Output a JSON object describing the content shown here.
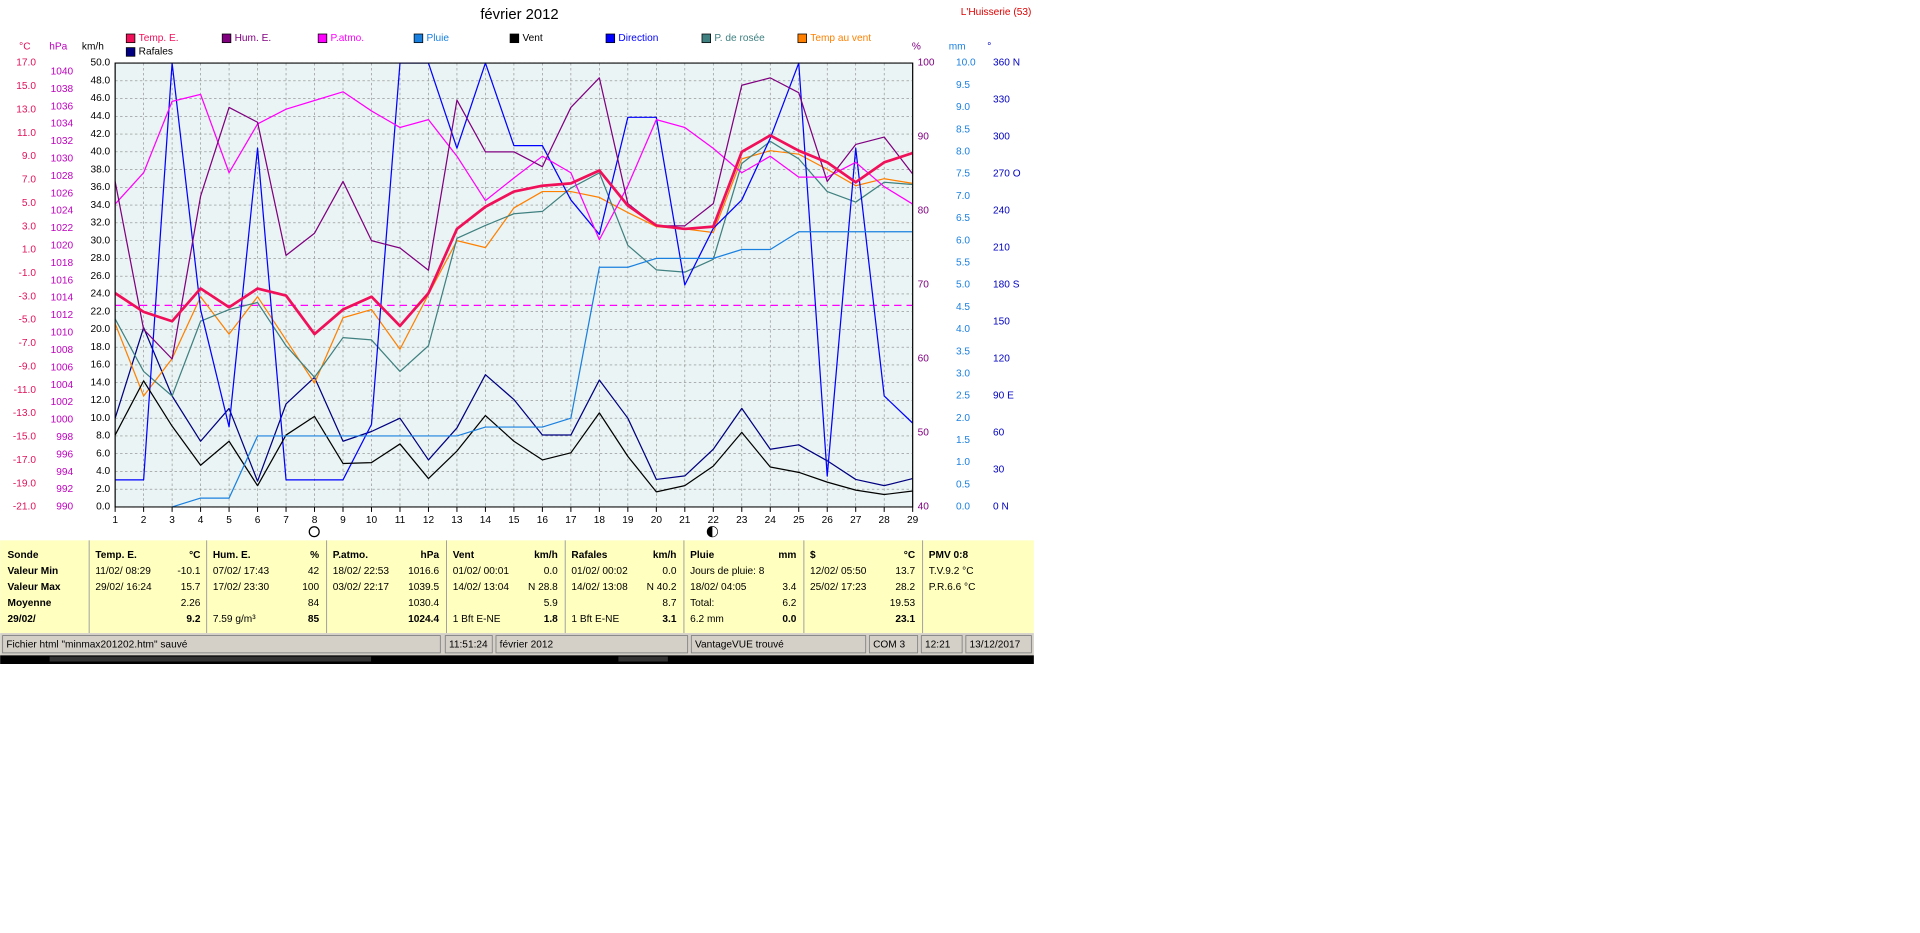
{
  "chart_data": {
    "type": "line",
    "title": "février 2012",
    "station": "L'Huisserie (53)",
    "x": [
      1,
      2,
      3,
      4,
      5,
      6,
      7,
      8,
      9,
      10,
      11,
      12,
      13,
      14,
      15,
      16,
      17,
      18,
      19,
      20,
      21,
      22,
      23,
      24,
      25,
      26,
      27,
      28,
      29
    ],
    "xlim": [
      1,
      29
    ],
    "grid": true,
    "axes": [
      {
        "label": "°C",
        "color": "#e0105a",
        "lim": [
          -21,
          17
        ],
        "ticks": [
          {
            "value": -21,
            "label": "-21.0"
          },
          {
            "value": -19,
            "label": "-19.0"
          },
          {
            "value": -17,
            "label": "-17.0"
          },
          {
            "value": -15,
            "label": "-15.0"
          },
          {
            "value": -13,
            "label": "-13.0"
          },
          {
            "value": -11,
            "label": "-11.0"
          },
          {
            "value": -9,
            "label": "-9.0"
          },
          {
            "value": -7,
            "label": "-7.0"
          },
          {
            "value": -5,
            "label": "-5.0"
          },
          {
            "value": -3,
            "label": "-3.0"
          },
          {
            "value": -1,
            "label": "-1.0"
          },
          {
            "value": 1,
            "label": "1.0"
          },
          {
            "value": 3,
            "label": "3.0"
          },
          {
            "value": 5,
            "label": "5.0"
          },
          {
            "value": 7,
            "label": "7.0"
          },
          {
            "value": 9,
            "label": "9.0"
          },
          {
            "value": 11,
            "label": "11.0"
          },
          {
            "value": 13,
            "label": "13.0"
          },
          {
            "value": 15,
            "label": "15.0"
          },
          {
            "value": 17,
            "label": "17.0"
          }
        ]
      },
      {
        "label": "hPa",
        "color": "#c000c0",
        "lim": [
          990,
          1041
        ],
        "ticks": [
          990,
          992,
          994,
          996,
          998,
          1000,
          1002,
          1004,
          1006,
          1008,
          1010,
          1012,
          1014,
          1016,
          1018,
          1020,
          1022,
          1024,
          1026,
          1028,
          1030,
          1032,
          1034,
          1036,
          1038,
          1040
        ]
      },
      {
        "label": "km/h",
        "color": "#000000",
        "lim": [
          0,
          50
        ],
        "ticks": [
          {
            "value": 0,
            "label": "0.0"
          },
          {
            "value": 2,
            "label": "2.0"
          },
          {
            "value": 4,
            "label": "4.0"
          },
          {
            "value": 6,
            "label": "6.0"
          },
          {
            "value": 8,
            "label": "8.0"
          },
          {
            "value": 10,
            "label": "10.0"
          },
          {
            "value": 12,
            "label": "12.0"
          },
          {
            "value": 14,
            "label": "14.0"
          },
          {
            "value": 16,
            "label": "16.0"
          },
          {
            "value": 18,
            "label": "18.0"
          },
          {
            "value": 20,
            "label": "20.0"
          },
          {
            "value": 22,
            "label": "22.0"
          },
          {
            "value": 24,
            "label": "24.0"
          },
          {
            "value": 26,
            "label": "26.0"
          },
          {
            "value": 28,
            "label": "28.0"
          },
          {
            "value": 30,
            "label": "30.0"
          },
          {
            "value": 32,
            "label": "32.0"
          },
          {
            "value": 34,
            "label": "34.0"
          },
          {
            "value": 36,
            "label": "36.0"
          },
          {
            "value": 38,
            "label": "38.0"
          },
          {
            "value": 40,
            "label": "40.0"
          },
          {
            "value": 42,
            "label": "42.0"
          },
          {
            "value": 44,
            "label": "44.0"
          },
          {
            "value": 46,
            "label": "46.0"
          },
          {
            "value": 48,
            "label": "48.0"
          },
          {
            "value": 50,
            "label": "50.0"
          }
        ]
      },
      {
        "label": "%",
        "color": "#800080",
        "lim": [
          40,
          100
        ],
        "ticks": [
          40,
          50,
          60,
          70,
          80,
          90,
          100
        ]
      },
      {
        "label": "mm",
        "color": "#1a80e0",
        "lim": [
          0,
          10
        ],
        "ticks": [
          {
            "value": 0,
            "label": "0.0"
          },
          0.5,
          {
            "value": 1,
            "label": "1.0"
          },
          1.5,
          {
            "value": 2,
            "label": "2.0"
          },
          2.5,
          {
            "value": 3,
            "label": "3.0"
          },
          3.5,
          {
            "value": 4,
            "label": "4.0"
          },
          4.5,
          {
            "value": 5,
            "label": "5.0"
          },
          5.5,
          {
            "value": 6,
            "label": "6.0"
          },
          6.5,
          {
            "value": 7,
            "label": "7.0"
          },
          7.5,
          {
            "value": 8,
            "label": "8.0"
          },
          8.5,
          {
            "value": 9,
            "label": "9.0"
          },
          9.5,
          {
            "value": 10,
            "label": "10.0"
          }
        ]
      },
      {
        "label": "°",
        "color": "#0000c0",
        "lim": [
          0,
          360
        ],
        "ticks": [
          {
            "value": 0,
            "label": "0   N"
          },
          30,
          60,
          {
            "value": 90,
            "label": "90  E"
          },
          120,
          150,
          {
            "value": 180,
            "label": "180 S"
          },
          210,
          240,
          {
            "value": 270,
            "label": "270 O"
          },
          300,
          330,
          {
            "value": 360,
            "label": "360 N"
          }
        ]
      }
    ],
    "series": [
      {
        "name": "Temp. E.",
        "color": "#f0105a",
        "axis": 0,
        "values": [
          -2.7,
          -4.3,
          -5.1,
          -2.3,
          -3.9,
          -2.3,
          -2.9,
          -6.2,
          -4.1,
          -3.0,
          -5.5,
          -2.7,
          2.8,
          4.7,
          6.0,
          6.5,
          6.7,
          7.8,
          4.8,
          3.1,
          2.8,
          3.0,
          9.4,
          10.8,
          9.5,
          8.5,
          6.8,
          8.5,
          9.3
        ]
      },
      {
        "name": "Hum. E.",
        "color": "#800080",
        "axis": 3,
        "values": [
          84,
          64,
          60,
          82,
          94,
          92,
          74,
          77,
          84,
          76,
          75,
          72,
          95,
          88,
          88,
          86,
          94,
          98,
          81,
          78,
          78,
          81,
          97,
          98,
          96,
          84,
          89,
          90,
          85
        ]
      },
      {
        "name": "P.atmo.",
        "color": "#ff00ff",
        "axis": 1,
        "values": [
          1024.8,
          1028.4,
          1036.6,
          1037.4,
          1028.4,
          1034.0,
          1035.7,
          1036.7,
          1037.7,
          1035.5,
          1033.6,
          1034.5,
          1030.3,
          1025.2,
          1027.8,
          1030.3,
          1028.4,
          1020.7,
          1026.9,
          1034.5,
          1033.6,
          1031.2,
          1028.4,
          1030.3,
          1027.9,
          1027.9,
          1029.6,
          1026.8,
          1024.8
        ]
      },
      {
        "name": "Pluie",
        "color": "#1a80e0",
        "axis": 4,
        "values": [
          null,
          null,
          0.0,
          0.2,
          0.2,
          1.6,
          1.6,
          1.6,
          1.6,
          1.6,
          1.6,
          1.6,
          1.6,
          1.8,
          1.8,
          1.8,
          2.0,
          5.4,
          5.4,
          5.6,
          5.6,
          5.6,
          5.8,
          5.8,
          6.2,
          6.2,
          6.2,
          6.2,
          6.2
        ]
      },
      {
        "name": "Vent",
        "color": "#000000",
        "axis": 2,
        "values": [
          8.1,
          14.2,
          9.1,
          4.7,
          7.4,
          2.4,
          8.1,
          10.2,
          4.9,
          5.0,
          7.1,
          3.2,
          6.3,
          10.3,
          7.4,
          5.3,
          6.1,
          10.6,
          5.7,
          1.7,
          2.4,
          4.6,
          8.4,
          4.5,
          3.9,
          2.8,
          1.9,
          1.4,
          1.8
        ]
      },
      {
        "name": "Direction",
        "color": "#0000ff",
        "axis": 5,
        "values": [
          22,
          22,
          360,
          160,
          65,
          291,
          22,
          22,
          22,
          67,
          360,
          360,
          291,
          360,
          293,
          293,
          249,
          221,
          316,
          316,
          180,
          226,
          249,
          299,
          360,
          25,
          291,
          90,
          68
        ]
      },
      {
        "name": "P. de rosée",
        "color": "#408080",
        "axis": 0,
        "values": [
          -4.9,
          -9.4,
          -11.5,
          -5.1,
          -4.1,
          -3.5,
          -7.2,
          -9.9,
          -6.5,
          -6.7,
          -9.4,
          -7.2,
          2.0,
          3.1,
          4.1,
          4.3,
          6.3,
          7.6,
          1.4,
          -0.7,
          -0.9,
          0.2,
          8.4,
          10.3,
          8.8,
          6.0,
          5.1,
          6.8,
          6.6
        ]
      },
      {
        "name": "Temp au vent",
        "color": "#ff8000",
        "axis": 0,
        "values": [
          -5.3,
          -11.5,
          -8.3,
          -3.0,
          -6.2,
          -3.0,
          -6.7,
          -10.4,
          -4.8,
          -4.1,
          -7.5,
          -2.8,
          1.8,
          1.2,
          4.6,
          6.0,
          6.0,
          5.5,
          4.2,
          3.0,
          2.8,
          2.5,
          8.8,
          9.5,
          9.2,
          7.9,
          6.5,
          7.1,
          6.7
        ]
      },
      {
        "name": "Rafales",
        "color": "#000080",
        "axis": 2,
        "values": [
          10.0,
          20.2,
          12.5,
          7.4,
          11.1,
          2.9,
          11.6,
          14.6,
          7.4,
          8.5,
          10.0,
          5.3,
          8.9,
          14.9,
          12.1,
          8.1,
          8.1,
          14.3,
          10.0,
          3.1,
          3.5,
          6.5,
          11.1,
          6.5,
          7.0,
          5.2,
          3.1,
          2.4,
          3.2
        ]
      }
    ]
  },
  "panel": {
    "row_labels": [
      "Sonde",
      "Valeur Min",
      "Valeur Max",
      "Moyenne",
      "29/02/"
    ],
    "columns": [
      {
        "header": {
          "left": "Temp. E.",
          "right": "°C"
        },
        "rows": [
          {
            "left": "11/02/  08:29",
            "right": "-10.1"
          },
          {
            "left": "29/02/  16:24",
            "right": "15.7"
          },
          {
            "right": "2.26"
          },
          {
            "right": "9.2"
          }
        ]
      },
      {
        "header": {
          "left": "Hum. E.",
          "right": "%"
        },
        "rows": [
          {
            "left": "07/02/  17:43",
            "right": "42"
          },
          {
            "left": "17/02/  23:30",
            "right": "100"
          },
          {
            "right": "84"
          },
          {
            "left": " 7.59 g/m³",
            "right": "85"
          }
        ]
      },
      {
        "header": {
          "left": "P.atmo.",
          "right": "hPa"
        },
        "rows": [
          {
            "left": "18/02/  22:53",
            "right": "1016.6"
          },
          {
            "left": "03/02/  22:17",
            "right": "1039.5"
          },
          {
            "right": "1030.4"
          },
          {
            "right": "1024.4"
          }
        ]
      },
      {
        "header": {
          "left": "Vent",
          "right": "km/h"
        },
        "rows": [
          {
            "left": "01/02/  00:01",
            "right": "0.0"
          },
          {
            "left": "14/02/  13:04",
            "right": "N 28.8"
          },
          {
            "right": "5.9"
          },
          {
            "left": " 1 Bft E-NE",
            "right": "1.8"
          }
        ]
      },
      {
        "header": {
          "left": "Rafales",
          "right": "km/h"
        },
        "rows": [
          {
            "left": "01/02/  00:02",
            "right": "0.0"
          },
          {
            "left": "14/02/  13:08",
            "right": "N 40.2"
          },
          {
            "right": "8.7"
          },
          {
            "left": " 1 Bft E-NE",
            "right": "3.1"
          }
        ]
      },
      {
        "header": {
          "left": "Pluie",
          "right": "mm"
        },
        "rows": [
          {
            "left": "Jours de pluie: 8"
          },
          {
            "left": "18/02/  04:05",
            "right": "3.4"
          },
          {
            "left": "Total:",
            "right": "6.2"
          },
          {
            "left": " 6.2 mm",
            "right": "0.0"
          }
        ]
      },
      {
        "header": {
          "left": "$",
          "right": "°C"
        },
        "rows": [
          {
            "left": "12/02/  05:50",
            "right": "13.7"
          },
          {
            "left": "25/02/  17:23",
            "right": "28.2"
          },
          {
            "right": "19.53"
          },
          {
            "right": "23.1"
          }
        ]
      },
      {
        "header": {
          "left": "PMV 0:8"
        },
        "rows": [
          {
            "left": "T.V.9.2 °C"
          },
          {
            "left": "P.R.6.6 °C"
          }
        ]
      }
    ]
  },
  "status_bar": [
    "Fichier html  \"minmax201202.htm\"  sauvé",
    "11:51:24",
    "février 2012",
    "VantageVUE trouvé",
    "COM 3",
    "12:21",
    "13/12/2017"
  ]
}
